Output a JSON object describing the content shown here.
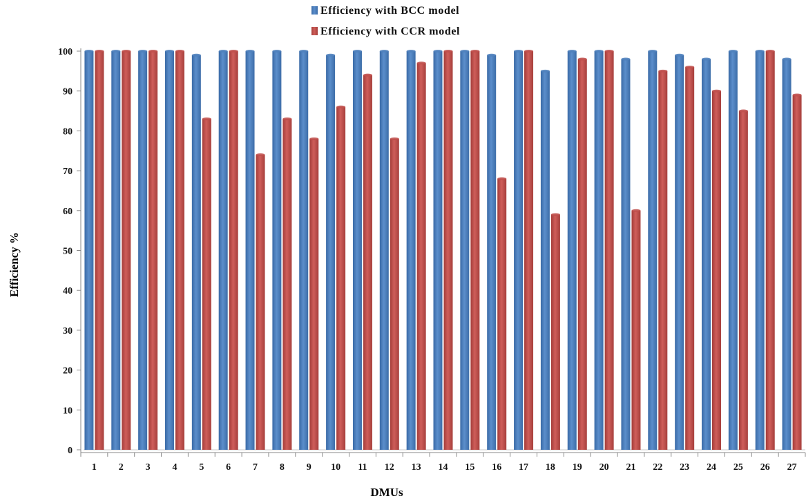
{
  "chart_data": {
    "type": "bar",
    "title": "",
    "xlabel": "DMUs",
    "ylabel": "Efficiency %",
    "ylim": [
      0,
      100
    ],
    "yticks": [
      0,
      10,
      20,
      30,
      40,
      50,
      60,
      70,
      80,
      90,
      100
    ],
    "grid": false,
    "legend_position": "top-center",
    "categories": [
      "1",
      "2",
      "3",
      "4",
      "5",
      "6",
      "7",
      "8",
      "9",
      "10",
      "11",
      "12",
      "13",
      "14",
      "15",
      "16",
      "17",
      "18",
      "19",
      "20",
      "21",
      "22",
      "23",
      "24",
      "25",
      "26",
      "27"
    ],
    "series": [
      {
        "name": "Efficiency with BCC model",
        "color": "#4F81BD",
        "values": [
          100,
          100,
          100,
          100,
          99,
          100,
          100,
          100,
          100,
          99,
          100,
          100,
          100,
          100,
          100,
          99,
          100,
          95,
          100,
          100,
          98,
          100,
          99,
          98,
          100,
          100,
          98
        ]
      },
      {
        "name": "Efficiency with CCR model",
        "color": "#C0504D",
        "values": [
          100,
          100,
          100,
          100,
          83,
          100,
          74,
          83,
          78,
          86,
          94,
          78,
          97,
          100,
          100,
          68,
          100,
          59,
          98,
          100,
          60,
          95,
          96,
          90,
          85,
          100,
          89
        ]
      }
    ]
  }
}
